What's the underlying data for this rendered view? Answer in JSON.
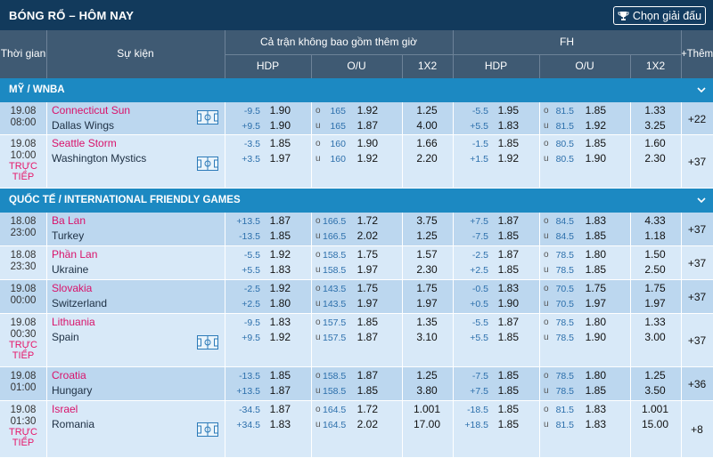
{
  "header": {
    "title": "BÓNG RỔ – HÔM NAY",
    "select_btn": "Chọn giải đấu"
  },
  "cols": {
    "time": "Thời gian",
    "event": "Sự kiện",
    "full": "Cả trận không bao gồm thêm giờ",
    "fh": "FH",
    "hdp": "HDP",
    "ou": "O/U",
    "x12": "1X2",
    "more": "+Thêm"
  },
  "leagues": [
    {
      "name": "MỸ / WNBA",
      "matches": [
        {
          "date": "19.08",
          "time": "08:00",
          "live": "",
          "home": "Connecticut Sun",
          "away": "Dallas Wings",
          "field": true,
          "hdp1": "-9.5",
          "hdp1o": "1.90",
          "hdp2": "+9.5",
          "hdp2o": "1.90",
          "ou1": "165",
          "ou1o": "1.92",
          "ou2": "165",
          "ou2o": "1.87",
          "x1": "1.25",
          "x2": "4.00",
          "fh1": "-5.5",
          "fh1o": "1.95",
          "fh2": "+5.5",
          "fh2o": "1.83",
          "fou1": "81.5",
          "fou1o": "1.85",
          "fou2": "81.5",
          "fou2o": "1.92",
          "fx1": "1.33",
          "fx2": "3.25",
          "more": "+22"
        },
        {
          "date": "19.08",
          "time": "10:00",
          "live": "TRỰC TIẾP",
          "home": "Seattle Storm",
          "away": "Washington Mystics",
          "field": true,
          "hdp1": "-3.5",
          "hdp1o": "1.85",
          "hdp2": "+3.5",
          "hdp2o": "1.97",
          "ou1": "160",
          "ou1o": "1.90",
          "ou2": "160",
          "ou2o": "1.92",
          "x1": "1.66",
          "x2": "2.20",
          "fh1": "-1.5",
          "fh1o": "1.85",
          "fh2": "+1.5",
          "fh2o": "1.92",
          "fou1": "80.5",
          "fou1o": "1.85",
          "fou2": "80.5",
          "fou2o": "1.90",
          "fx1": "1.60",
          "fx2": "2.30",
          "more": "+37"
        }
      ]
    },
    {
      "name": "QUỐC TẾ / INTERNATIONAL FRIENDLY GAMES",
      "matches": [
        {
          "date": "18.08",
          "time": "23:00",
          "live": "",
          "home": "Ba Lan",
          "away": "Turkey",
          "field": false,
          "hdp1": "+13.5",
          "hdp1o": "1.87",
          "hdp2": "-13.5",
          "hdp2o": "1.85",
          "ou1": "166.5",
          "ou1o": "1.72",
          "ou2": "166.5",
          "ou2o": "2.02",
          "x1": "3.75",
          "x2": "1.25",
          "fh1": "+7.5",
          "fh1o": "1.87",
          "fh2": "-7.5",
          "fh2o": "1.85",
          "fou1": "84.5",
          "fou1o": "1.83",
          "fou2": "84.5",
          "fou2o": "1.85",
          "fx1": "4.33",
          "fx2": "1.18",
          "more": "+37"
        },
        {
          "date": "18.08",
          "time": "23:30",
          "live": "",
          "home": "Phần Lan",
          "away": "Ukraine",
          "field": false,
          "hdp1": "-5.5",
          "hdp1o": "1.92",
          "hdp2": "+5.5",
          "hdp2o": "1.83",
          "ou1": "158.5",
          "ou1o": "1.75",
          "ou2": "158.5",
          "ou2o": "1.97",
          "x1": "1.57",
          "x2": "2.30",
          "fh1": "-2.5",
          "fh1o": "1.87",
          "fh2": "+2.5",
          "fh2o": "1.85",
          "fou1": "78.5",
          "fou1o": "1.80",
          "fou2": "78.5",
          "fou2o": "1.85",
          "fx1": "1.50",
          "fx2": "2.50",
          "more": "+37"
        },
        {
          "date": "19.08",
          "time": "00:00",
          "live": "",
          "home": "Slovakia",
          "away": "Switzerland",
          "field": false,
          "hdp1": "-2.5",
          "hdp1o": "1.92",
          "hdp2": "+2.5",
          "hdp2o": "1.80",
          "ou1": "143.5",
          "ou1o": "1.75",
          "ou2": "143.5",
          "ou2o": "1.97",
          "x1": "1.75",
          "x2": "1.97",
          "fh1": "-0.5",
          "fh1o": "1.83",
          "fh2": "+0.5",
          "fh2o": "1.90",
          "fou1": "70.5",
          "fou1o": "1.75",
          "fou2": "70.5",
          "fou2o": "1.97",
          "fx1": "1.75",
          "fx2": "1.97",
          "more": "+37"
        },
        {
          "date": "19.08",
          "time": "00:30",
          "live": "TRỰC TIẾP",
          "home": "Lithuania",
          "away": "Spain",
          "field": true,
          "hdp1": "-9.5",
          "hdp1o": "1.83",
          "hdp2": "+9.5",
          "hdp2o": "1.92",
          "ou1": "157.5",
          "ou1o": "1.85",
          "ou2": "157.5",
          "ou2o": "1.87",
          "x1": "1.35",
          "x2": "3.10",
          "fh1": "-5.5",
          "fh1o": "1.87",
          "fh2": "+5.5",
          "fh2o": "1.85",
          "fou1": "78.5",
          "fou1o": "1.80",
          "fou2": "78.5",
          "fou2o": "1.90",
          "fx1": "1.33",
          "fx2": "3.00",
          "more": "+37"
        },
        {
          "date": "19.08",
          "time": "01:00",
          "live": "",
          "home": "Croatia",
          "away": "Hungary",
          "field": false,
          "hdp1": "-13.5",
          "hdp1o": "1.85",
          "hdp2": "+13.5",
          "hdp2o": "1.87",
          "ou1": "158.5",
          "ou1o": "1.87",
          "ou2": "158.5",
          "ou2o": "1.85",
          "x1": "1.25",
          "x2": "3.80",
          "fh1": "-7.5",
          "fh1o": "1.85",
          "fh2": "+7.5",
          "fh2o": "1.85",
          "fou1": "78.5",
          "fou1o": "1.80",
          "fou2": "78.5",
          "fou2o": "1.85",
          "fx1": "1.25",
          "fx2": "3.50",
          "more": "+36"
        },
        {
          "date": "19.08",
          "time": "01:30",
          "live": "TRỰC TIẾP",
          "home": "Israel",
          "away": "Romania",
          "field": true,
          "hdp1": "-34.5",
          "hdp1o": "1.87",
          "hdp2": "+34.5",
          "hdp2o": "1.83",
          "ou1": "164.5",
          "ou1o": "1.72",
          "ou2": "164.5",
          "ou2o": "2.02",
          "x1": "1.001",
          "x2": "17.00",
          "fh1": "-18.5",
          "fh1o": "1.85",
          "fh2": "+18.5",
          "fh2o": "1.85",
          "fou1": "81.5",
          "fou1o": "1.83",
          "fou2": "81.5",
          "fou2o": "1.83",
          "fx1": "1.001",
          "fx2": "15.00",
          "more": "+8"
        }
      ]
    }
  ]
}
